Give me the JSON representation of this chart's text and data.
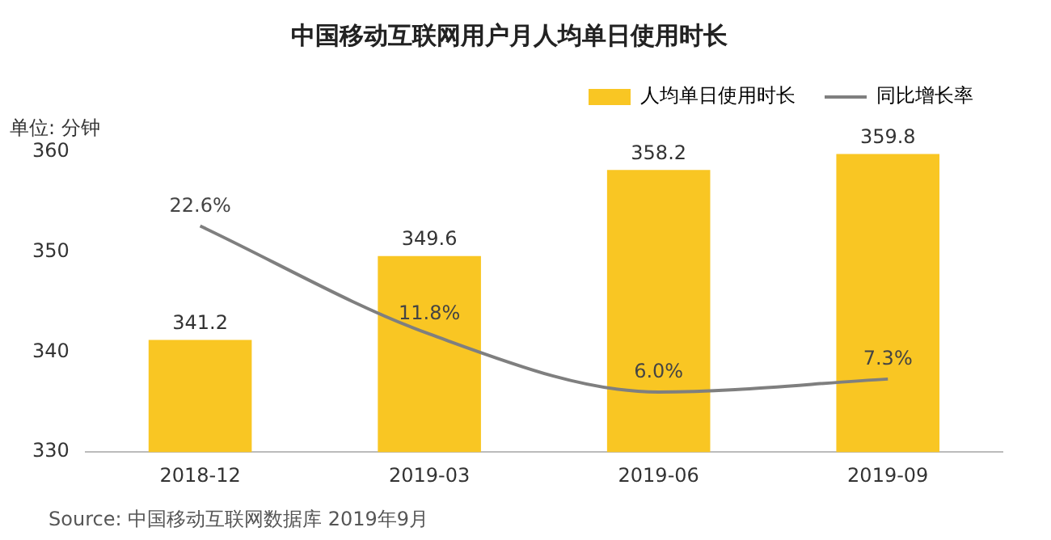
{
  "chart_data": {
    "type": "bar",
    "title": "中国移动互联网用户月人均单日使用时长",
    "ylabel": "单位: 分钟",
    "annotations": [
      "Source: 中国移动互联网数据库 2019年9月"
    ],
    "categories": [
      "2018-12",
      "2019-03",
      "2019-06",
      "2019-09"
    ],
    "series": [
      {
        "name": "人均单日使用时长",
        "color": "#f9c623",
        "values": [
          341.2,
          349.6,
          358.2,
          359.8
        ]
      },
      {
        "type": "line",
        "name": "同比增长率",
        "color": "#7f7f7f",
        "axis": "y2",
        "values": [
          22.6,
          11.8,
          6.0,
          7.3
        ],
        "value_labels": [
          "22.6%",
          "11.8%",
          "6.0%",
          "7.3%"
        ]
      }
    ],
    "ylim": [
      330,
      360
    ],
    "yticks": [
      330,
      340,
      350,
      360
    ],
    "data_labels": true,
    "legend": "top right",
    "grid": false,
    "marker": "none"
  }
}
